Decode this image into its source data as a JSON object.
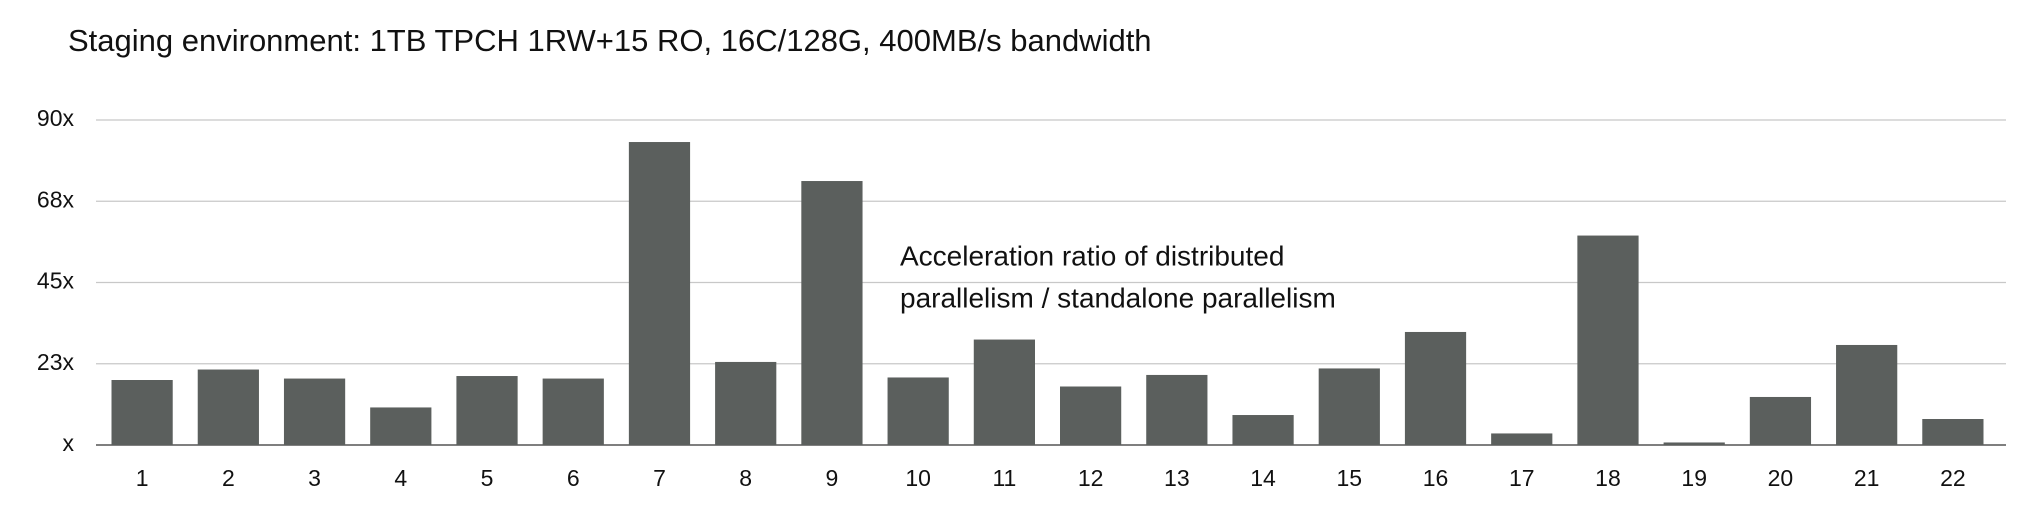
{
  "chart_data": {
    "type": "bar",
    "title": "Staging environment: 1TB TPCH 1RW+15 RO, 16C/128G, 400MB/s bandwidth",
    "annotation": [
      "Acceleration ratio of distributed",
      "parallelism / standalone parallelism"
    ],
    "categories": [
      "1",
      "2",
      "3",
      "4",
      "5",
      "6",
      "7",
      "8",
      "9",
      "10",
      "11",
      "12",
      "13",
      "14",
      "15",
      "16",
      "17",
      "18",
      "19",
      "20",
      "21",
      "22"
    ],
    "values": [
      18,
      20.9,
      18.4,
      10.4,
      19.1,
      18.4,
      83.9,
      23,
      73.1,
      18.7,
      29.2,
      16.2,
      19.4,
      8.3,
      21.2,
      31.3,
      3.2,
      58,
      0.7,
      13.3,
      27.7,
      7.2
    ],
    "color": "#5b5f5d",
    "ylim": [
      0,
      90
    ],
    "yticks": [
      {
        "value": 0,
        "label": "x"
      },
      {
        "value": 22.5,
        "label": "23x"
      },
      {
        "value": 45,
        "label": "45x"
      },
      {
        "value": 67.5,
        "label": "68x"
      },
      {
        "value": 90,
        "label": "90x"
      }
    ],
    "grid": true
  }
}
